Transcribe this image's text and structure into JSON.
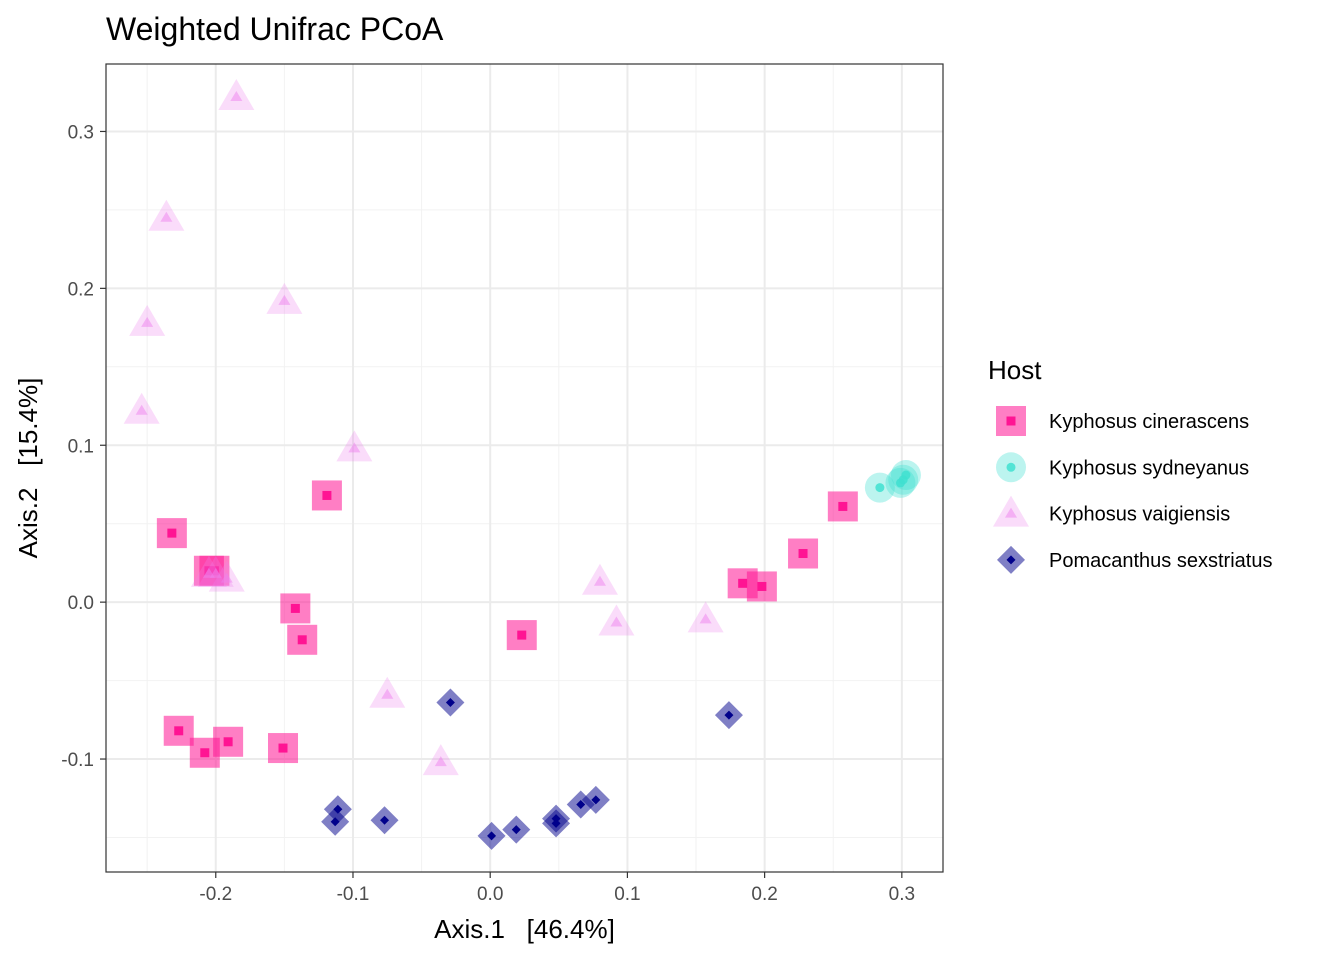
{
  "chart_data": {
    "type": "scatter",
    "title": "Weighted Unifrac PCoA",
    "xlabel": "Axis.1   [46.4%]",
    "ylabel": "Axis.2   [15.4%]",
    "xlim": [
      -0.28,
      0.33
    ],
    "ylim": [
      -0.172,
      0.343
    ],
    "x_ticks": [
      -0.2,
      -0.1,
      0.0,
      0.1,
      0.2,
      0.3
    ],
    "x_tick_labels": [
      "-0.2",
      "-0.1",
      "0.0",
      "0.1",
      "0.2",
      "0.3"
    ],
    "y_ticks": [
      -0.1,
      0.0,
      0.1,
      0.2,
      0.3
    ],
    "y_tick_labels": [
      "-0.1",
      "0.0",
      "0.1",
      "0.2",
      "0.3"
    ],
    "grid": true,
    "legend_title": "Host",
    "legend_position": "right",
    "series": [
      {
        "name": "Kyphosus cinerascens",
        "shape": "square",
        "color": "#FF1493",
        "points": [
          [
            -0.232,
            0.044
          ],
          [
            -0.119,
            0.068
          ],
          [
            -0.205,
            0.02
          ],
          [
            -0.201,
            0.02
          ],
          [
            -0.142,
            -0.004
          ],
          [
            -0.137,
            -0.024
          ],
          [
            0.023,
            -0.021
          ],
          [
            -0.227,
            -0.082
          ],
          [
            -0.208,
            -0.096
          ],
          [
            -0.191,
            -0.089
          ],
          [
            -0.151,
            -0.093
          ],
          [
            0.184,
            0.012
          ],
          [
            0.198,
            0.01
          ],
          [
            0.228,
            0.031
          ],
          [
            0.257,
            0.061
          ]
        ]
      },
      {
        "name": "Kyphosus sydneyanus",
        "shape": "circle",
        "color": "#40E0D0",
        "points": [
          [
            0.284,
            0.073
          ],
          [
            0.299,
            0.076
          ],
          [
            0.301,
            0.078
          ],
          [
            0.303,
            0.081
          ]
        ]
      },
      {
        "name": "Kyphosus vaigiensis",
        "shape": "triangle",
        "color": "#EE82EE",
        "points": [
          [
            -0.185,
            0.322
          ],
          [
            -0.236,
            0.245
          ],
          [
            -0.15,
            0.192
          ],
          [
            -0.25,
            0.178
          ],
          [
            -0.254,
            0.122
          ],
          [
            -0.099,
            0.098
          ],
          [
            -0.205,
            0.018
          ],
          [
            -0.2,
            0.018
          ],
          [
            -0.192,
            0.015
          ],
          [
            0.08,
            0.013
          ],
          [
            0.092,
            -0.013
          ],
          [
            0.157,
            -0.011
          ],
          [
            -0.075,
            -0.059
          ],
          [
            -0.036,
            -0.102
          ]
        ]
      },
      {
        "name": "Pomacanthus sexstriatus",
        "shape": "diamond",
        "color": "#00008B",
        "points": [
          [
            -0.029,
            -0.064
          ],
          [
            0.174,
            -0.072
          ],
          [
            -0.111,
            -0.132
          ],
          [
            -0.113,
            -0.14
          ],
          [
            -0.077,
            -0.139
          ],
          [
            0.001,
            -0.149
          ],
          [
            0.019,
            -0.145
          ],
          [
            0.048,
            -0.138
          ],
          [
            0.048,
            -0.141
          ],
          [
            0.066,
            -0.129
          ],
          [
            0.077,
            -0.126
          ]
        ]
      }
    ]
  }
}
